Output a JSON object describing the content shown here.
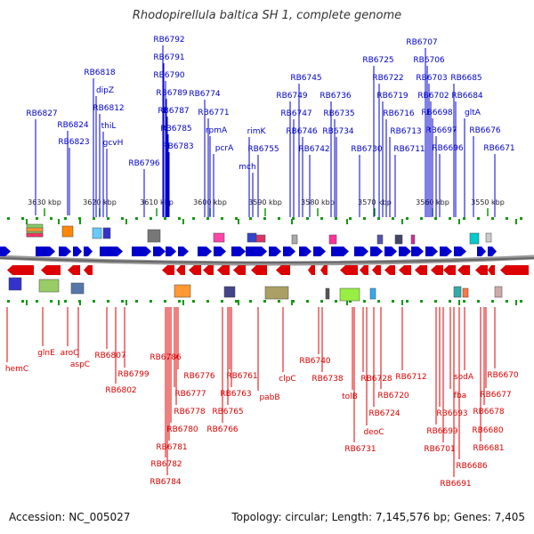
{
  "title": "Rhodopirellula baltica SH 1, complete genome",
  "footer": {
    "accession": "Accession: NC_005027",
    "topology": "Topology: circular; Length: 7,145,576 bp; Genes: 7,405"
  },
  "colors": {
    "forward": "#0000cc",
    "reverse": "#dd0000",
    "backbone": "#888888",
    "tick": "#119911"
  },
  "scale_labels": [
    "3630 kbp",
    "3620 kbp",
    "3610 kbp",
    "3600 kbp",
    "3590 kbp",
    "3580 kbp",
    "3570 kbp",
    "3560 kbp",
    "3550 kbp"
  ],
  "top_labels": [
    "RB6827",
    "RB6824",
    "RB6823",
    "RB6818",
    "dipZ",
    "RB6812",
    "thiL",
    "gcvH",
    "RB6796",
    "RB6792",
    "RB6791",
    "RB6790",
    "RB6789",
    "RB6787",
    "RB6785",
    "RB6783",
    "RB6774",
    "RB6771",
    "rpmA",
    "pcrA",
    "rimK",
    "mch",
    "RB6755",
    "RB6749",
    "RB6747",
    "RB6745",
    "RB6746",
    "RB6742",
    "RB6736",
    "RB6735",
    "RB6734",
    "RB6730",
    "RB6725",
    "RB6722",
    "RB6719",
    "RB6716",
    "RB6713",
    "RB6711",
    "RB6707",
    "RB6706",
    "RB6703",
    "RB6702",
    "RB6698",
    "RB6697",
    "RB6696",
    "RB6685",
    "RB6684",
    "gltA",
    "RB6676",
    "RB6671"
  ],
  "bottom_labels": [
    "hemC",
    "glnE",
    "aroC",
    "aspC",
    "RB6807",
    "RB6799",
    "RB6802",
    "RB6786",
    "RB6776",
    "RB6777",
    "RB6778",
    "RB6780",
    "RB6781",
    "RB6782",
    "RB6784",
    "RB6761",
    "RB6763",
    "RB6765",
    "RB6766",
    "pabB",
    "clpC",
    "RB6740",
    "RB6738",
    "tolB",
    "RB6728",
    "RB6731",
    "deoC",
    "RB6724",
    "RB6720",
    "RB6712",
    "RB6699",
    "RB6693",
    "RB6701",
    "fba",
    "RB6691",
    "RB6686",
    "sodA",
    "RB6670",
    "RB6677",
    "RB6678",
    "RB6680",
    "RB6681"
  ]
}
